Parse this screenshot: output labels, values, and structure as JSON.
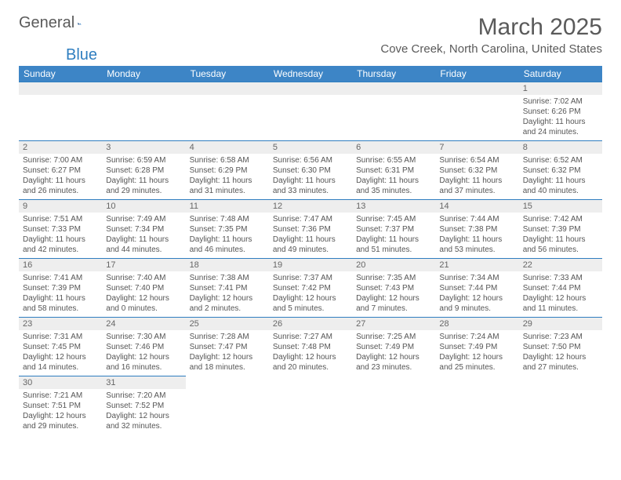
{
  "logo": {
    "part1": "General",
    "part2": "Blue"
  },
  "title": "March 2025",
  "location": "Cove Creek, North Carolina, United States",
  "colors": {
    "header_bg": "#3d85c6",
    "header_text": "#ffffff",
    "daynum_bg": "#eeeeee",
    "border": "#2f7ec0",
    "text": "#555555",
    "title_text": "#5a5a5a"
  },
  "fonts": {
    "title_size_pt": 30,
    "location_size_pt": 15,
    "th_size_pt": 12,
    "daynum_size_pt": 11,
    "body_size_pt": 10
  },
  "columns": [
    "Sunday",
    "Monday",
    "Tuesday",
    "Wednesday",
    "Thursday",
    "Friday",
    "Saturday"
  ],
  "weeks": [
    [
      null,
      null,
      null,
      null,
      null,
      null,
      {
        "n": "1",
        "sr": "Sunrise: 7:02 AM",
        "ss": "Sunset: 6:26 PM",
        "dl": "Daylight: 11 hours and 24 minutes."
      }
    ],
    [
      {
        "n": "2",
        "sr": "Sunrise: 7:00 AM",
        "ss": "Sunset: 6:27 PM",
        "dl": "Daylight: 11 hours and 26 minutes."
      },
      {
        "n": "3",
        "sr": "Sunrise: 6:59 AM",
        "ss": "Sunset: 6:28 PM",
        "dl": "Daylight: 11 hours and 29 minutes."
      },
      {
        "n": "4",
        "sr": "Sunrise: 6:58 AM",
        "ss": "Sunset: 6:29 PM",
        "dl": "Daylight: 11 hours and 31 minutes."
      },
      {
        "n": "5",
        "sr": "Sunrise: 6:56 AM",
        "ss": "Sunset: 6:30 PM",
        "dl": "Daylight: 11 hours and 33 minutes."
      },
      {
        "n": "6",
        "sr": "Sunrise: 6:55 AM",
        "ss": "Sunset: 6:31 PM",
        "dl": "Daylight: 11 hours and 35 minutes."
      },
      {
        "n": "7",
        "sr": "Sunrise: 6:54 AM",
        "ss": "Sunset: 6:32 PM",
        "dl": "Daylight: 11 hours and 37 minutes."
      },
      {
        "n": "8",
        "sr": "Sunrise: 6:52 AM",
        "ss": "Sunset: 6:32 PM",
        "dl": "Daylight: 11 hours and 40 minutes."
      }
    ],
    [
      {
        "n": "9",
        "sr": "Sunrise: 7:51 AM",
        "ss": "Sunset: 7:33 PM",
        "dl": "Daylight: 11 hours and 42 minutes."
      },
      {
        "n": "10",
        "sr": "Sunrise: 7:49 AM",
        "ss": "Sunset: 7:34 PM",
        "dl": "Daylight: 11 hours and 44 minutes."
      },
      {
        "n": "11",
        "sr": "Sunrise: 7:48 AM",
        "ss": "Sunset: 7:35 PM",
        "dl": "Daylight: 11 hours and 46 minutes."
      },
      {
        "n": "12",
        "sr": "Sunrise: 7:47 AM",
        "ss": "Sunset: 7:36 PM",
        "dl": "Daylight: 11 hours and 49 minutes."
      },
      {
        "n": "13",
        "sr": "Sunrise: 7:45 AM",
        "ss": "Sunset: 7:37 PM",
        "dl": "Daylight: 11 hours and 51 minutes."
      },
      {
        "n": "14",
        "sr": "Sunrise: 7:44 AM",
        "ss": "Sunset: 7:38 PM",
        "dl": "Daylight: 11 hours and 53 minutes."
      },
      {
        "n": "15",
        "sr": "Sunrise: 7:42 AM",
        "ss": "Sunset: 7:39 PM",
        "dl": "Daylight: 11 hours and 56 minutes."
      }
    ],
    [
      {
        "n": "16",
        "sr": "Sunrise: 7:41 AM",
        "ss": "Sunset: 7:39 PM",
        "dl": "Daylight: 11 hours and 58 minutes."
      },
      {
        "n": "17",
        "sr": "Sunrise: 7:40 AM",
        "ss": "Sunset: 7:40 PM",
        "dl": "Daylight: 12 hours and 0 minutes."
      },
      {
        "n": "18",
        "sr": "Sunrise: 7:38 AM",
        "ss": "Sunset: 7:41 PM",
        "dl": "Daylight: 12 hours and 2 minutes."
      },
      {
        "n": "19",
        "sr": "Sunrise: 7:37 AM",
        "ss": "Sunset: 7:42 PM",
        "dl": "Daylight: 12 hours and 5 minutes."
      },
      {
        "n": "20",
        "sr": "Sunrise: 7:35 AM",
        "ss": "Sunset: 7:43 PM",
        "dl": "Daylight: 12 hours and 7 minutes."
      },
      {
        "n": "21",
        "sr": "Sunrise: 7:34 AM",
        "ss": "Sunset: 7:44 PM",
        "dl": "Daylight: 12 hours and 9 minutes."
      },
      {
        "n": "22",
        "sr": "Sunrise: 7:33 AM",
        "ss": "Sunset: 7:44 PM",
        "dl": "Daylight: 12 hours and 11 minutes."
      }
    ],
    [
      {
        "n": "23",
        "sr": "Sunrise: 7:31 AM",
        "ss": "Sunset: 7:45 PM",
        "dl": "Daylight: 12 hours and 14 minutes."
      },
      {
        "n": "24",
        "sr": "Sunrise: 7:30 AM",
        "ss": "Sunset: 7:46 PM",
        "dl": "Daylight: 12 hours and 16 minutes."
      },
      {
        "n": "25",
        "sr": "Sunrise: 7:28 AM",
        "ss": "Sunset: 7:47 PM",
        "dl": "Daylight: 12 hours and 18 minutes."
      },
      {
        "n": "26",
        "sr": "Sunrise: 7:27 AM",
        "ss": "Sunset: 7:48 PM",
        "dl": "Daylight: 12 hours and 20 minutes."
      },
      {
        "n": "27",
        "sr": "Sunrise: 7:25 AM",
        "ss": "Sunset: 7:49 PM",
        "dl": "Daylight: 12 hours and 23 minutes."
      },
      {
        "n": "28",
        "sr": "Sunrise: 7:24 AM",
        "ss": "Sunset: 7:49 PM",
        "dl": "Daylight: 12 hours and 25 minutes."
      },
      {
        "n": "29",
        "sr": "Sunrise: 7:23 AM",
        "ss": "Sunset: 7:50 PM",
        "dl": "Daylight: 12 hours and 27 minutes."
      }
    ],
    [
      {
        "n": "30",
        "sr": "Sunrise: 7:21 AM",
        "ss": "Sunset: 7:51 PM",
        "dl": "Daylight: 12 hours and 29 minutes."
      },
      {
        "n": "31",
        "sr": "Sunrise: 7:20 AM",
        "ss": "Sunset: 7:52 PM",
        "dl": "Daylight: 12 hours and 32 minutes."
      },
      null,
      null,
      null,
      null,
      null
    ]
  ]
}
